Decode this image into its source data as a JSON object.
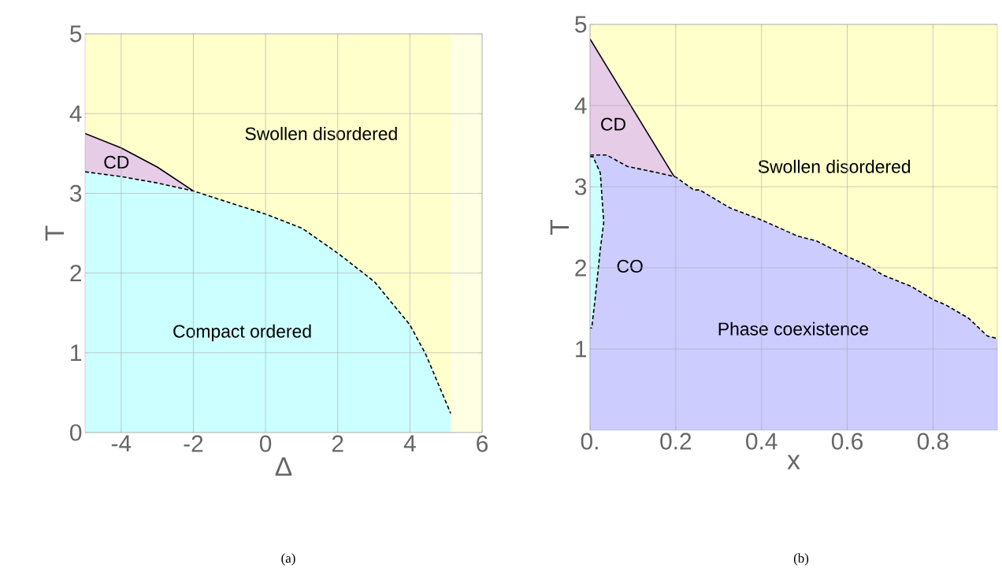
{
  "chart_data": [
    {
      "type": "area",
      "xlabel": "Δ",
      "ylabel": "T",
      "xlim": [
        -5,
        6
      ],
      "ylim": [
        0,
        5
      ],
      "xticks": [
        -4,
        -2,
        0,
        2,
        4,
        6
      ],
      "yticks": [
        0,
        1,
        2,
        3,
        4,
        5
      ],
      "grid": true,
      "bands": [
        {
          "axis": "y",
          "from": 0,
          "to": 5,
          "color": "#ffffcc"
        },
        {
          "axis": "x",
          "from": 5.13,
          "to": 6,
          "color": "#ffffe3"
        }
      ],
      "series": [
        {
          "color": "#e6cce6",
          "line_style": "solid",
          "x": [
            -5,
            -4,
            -3,
            -2
          ],
          "values": [
            3.75,
            3.57,
            3.33,
            3.03
          ]
        },
        {
          "color": "#ccffff",
          "line_style": "dashed",
          "x": [
            -5,
            -4,
            -3,
            -2,
            -0.98,
            0,
            1.02,
            2,
            3.02,
            4,
            4.44,
            5.13
          ],
          "values": [
            3.27,
            3.21,
            3.13,
            3.03,
            2.88,
            2.74,
            2.56,
            2.25,
            1.89,
            1.35,
            0.98,
            0.24
          ]
        }
      ],
      "annotations": [
        "Swollen disordered",
        "CD",
        "Compact ordered",
        "(a)"
      ]
    },
    {
      "type": "area",
      "xlabel": "x",
      "ylabel": "T",
      "xlim": [
        0,
        0.95
      ],
      "ylim": [
        0,
        5
      ],
      "xticks": [
        {
          "value": 0,
          "label": "0."
        },
        0.2,
        0.4,
        0.6,
        0.8
      ],
      "yticks": [
        1,
        2,
        3,
        4,
        5
      ],
      "grid": true,
      "bands": [
        {
          "axis": "y",
          "from": 0,
          "to": 5,
          "color": "#ffffcc"
        }
      ],
      "series": [
        {
          "color": "#e6cce6",
          "line_style": "solid",
          "x": [
            0,
            0.199
          ],
          "values": [
            4.82,
            3.1
          ]
        },
        {
          "color": "#ccccff",
          "line_style": "dashed",
          "x": [
            0,
            0.039,
            0.087,
            0.16,
            0.2,
            0.242,
            0.256,
            0.326,
            0.4,
            0.485,
            0.529,
            0.6,
            0.643,
            0.684,
            0.75,
            0.8,
            0.831,
            0.883,
            0.927,
            0.95
          ],
          "values": [
            3.39,
            3.39,
            3.25,
            3.17,
            3.12,
            2.96,
            2.96,
            2.74,
            2.59,
            2.39,
            2.33,
            2.14,
            2.04,
            1.91,
            1.77,
            1.61,
            1.54,
            1.38,
            1.16,
            1.13
          ]
        },
        {
          "color": "#ccffff",
          "line_style": "dashed",
          "x": [
            0,
            0.007,
            0.024,
            0.032,
            0.024,
            0.013,
            0.004,
            0
          ],
          "values": [
            3.37,
            3.37,
            3.17,
            2.56,
            2.23,
            1.67,
            1.26,
            1.26
          ]
        }
      ],
      "annotations": [
        "CD",
        "Swollen disordered",
        "CO",
        "Phase coexistence",
        "(b)"
      ]
    }
  ]
}
